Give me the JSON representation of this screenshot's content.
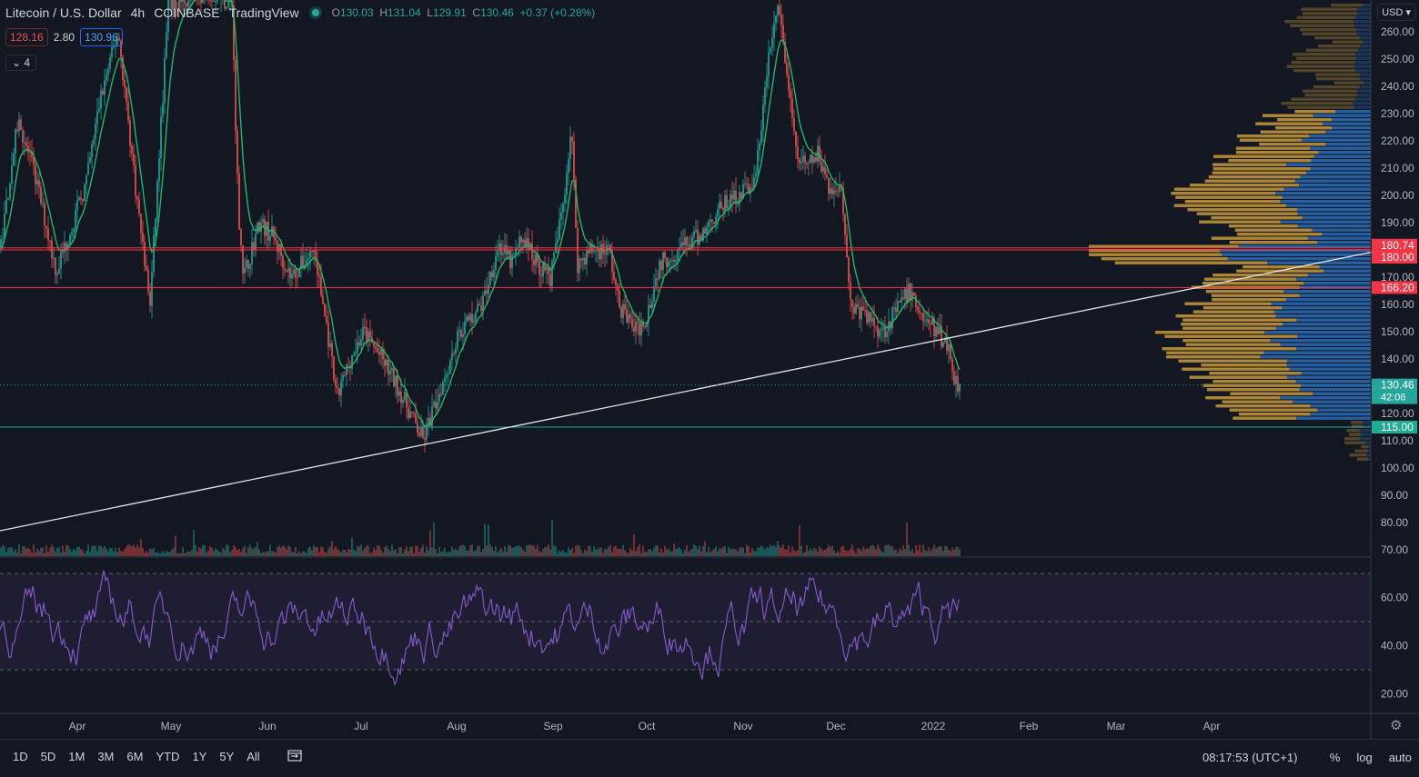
{
  "header": {
    "symbol": "Litecoin / U.S. Dollar",
    "interval": "4h",
    "exchange": "COINBASE",
    "provider": "TradingView",
    "o_label": "O",
    "o": "130.03",
    "h_label": "H",
    "h": "131.04",
    "l_label": "L",
    "l": "129.91",
    "c_label": "C",
    "c": "130.46",
    "change": "+0.37 (+0.28%)"
  },
  "quote": {
    "bid": "128.16",
    "spread": "2.80",
    "ask": "130.96"
  },
  "indicators": {
    "toggle_icon": "chevron-down-icon",
    "count": "4"
  },
  "currency": "USD",
  "colors": {
    "bg": "#131722",
    "up": "#26a69a",
    "down": "#ef5350",
    "ma": "#1fb86b",
    "rsi": "#7e57c2",
    "level": "#f23645",
    "support": "#22ab94",
    "vp_orange": "#c89a3a",
    "vp_blue": "#2a6db8"
  },
  "chart_data": {
    "type": "candlestick",
    "y_ticks": [
      "260.00",
      "250.00",
      "240.00",
      "230.00",
      "220.00",
      "210.00",
      "200.00",
      "190.00",
      "180.00",
      "170.00",
      "160.00",
      "150.00",
      "140.00",
      "130.00",
      "120.00",
      "110.00",
      "100.00",
      "90.00",
      "80.00",
      "70.00"
    ],
    "ylim": [
      70,
      270
    ],
    "x_ticks": [
      "Apr",
      "May",
      "Jun",
      "Jul",
      "Aug",
      "Sep",
      "Oct",
      "Nov",
      "Dec",
      "2022",
      "Feb",
      "Mar",
      "Apr"
    ],
    "price_path": [
      [
        0,
        180
      ],
      [
        20,
        228
      ],
      [
        40,
        205
      ],
      [
        62,
        172
      ],
      [
        95,
        205
      ],
      [
        110,
        235
      ],
      [
        130,
        260
      ],
      [
        150,
        200
      ],
      [
        165,
        160
      ],
      [
        185,
        270
      ],
      [
        230,
        275
      ],
      [
        255,
        270
      ],
      [
        262,
        195
      ],
      [
        268,
        170
      ],
      [
        285,
        190
      ],
      [
        300,
        185
      ],
      [
        320,
        170
      ],
      [
        345,
        180
      ],
      [
        360,
        150
      ],
      [
        370,
        125
      ],
      [
        385,
        140
      ],
      [
        400,
        150
      ],
      [
        420,
        140
      ],
      [
        440,
        128
      ],
      [
        465,
        110
      ],
      [
        480,
        125
      ],
      [
        505,
        150
      ],
      [
        530,
        160
      ],
      [
        548,
        182
      ],
      [
        562,
        175
      ],
      [
        575,
        185
      ],
      [
        590,
        175
      ],
      [
        605,
        170
      ],
      [
        612,
        182
      ],
      [
        620,
        200
      ],
      [
        628,
        225
      ],
      [
        635,
        175
      ],
      [
        650,
        180
      ],
      [
        670,
        180
      ],
      [
        680,
        160
      ],
      [
        700,
        150
      ],
      [
        710,
        155
      ],
      [
        725,
        175
      ],
      [
        745,
        180
      ],
      [
        770,
        185
      ],
      [
        790,
        195
      ],
      [
        810,
        200
      ],
      [
        830,
        205
      ],
      [
        845,
        250
      ],
      [
        855,
        270
      ],
      [
        865,
        245
      ],
      [
        875,
        215
      ],
      [
        885,
        210
      ],
      [
        900,
        215
      ],
      [
        915,
        200
      ],
      [
        925,
        205
      ],
      [
        935,
        160
      ],
      [
        955,
        155
      ],
      [
        970,
        150
      ],
      [
        990,
        160
      ],
      [
        1000,
        165
      ],
      [
        1015,
        155
      ],
      [
        1030,
        150
      ],
      [
        1042,
        145
      ],
      [
        1050,
        132
      ],
      [
        1056,
        130.46
      ]
    ],
    "levels": [
      {
        "label": "180.74",
        "value": 180.74,
        "color": "#f23645"
      },
      {
        "label": "180.00",
        "value": 180,
        "color": "#f23645"
      },
      {
        "label": "166.20",
        "value": 166.2,
        "color": "#f23645"
      },
      {
        "label": "115.00",
        "value": 115,
        "color": "#22ab94"
      }
    ],
    "last_price": {
      "label": "130.46",
      "countdown": "42:06",
      "value": 130.46
    },
    "rsi": {
      "ylim": [
        15,
        75
      ],
      "ticks": [
        "60.00",
        "40.00",
        "20.00"
      ],
      "upper": 70,
      "mid": 50,
      "lower": 30
    },
    "volume_profile": "right-side horizontal histogram"
  },
  "bottom": {
    "ranges": [
      "1D",
      "5D",
      "1M",
      "3M",
      "6M",
      "YTD",
      "1Y",
      "5Y",
      "All"
    ],
    "goto_icon": "calendar-goto-icon",
    "time": "08:17:53 (UTC+1)",
    "percent": "%",
    "log": "log",
    "auto": "auto",
    "settings_icon": "gear-icon"
  }
}
